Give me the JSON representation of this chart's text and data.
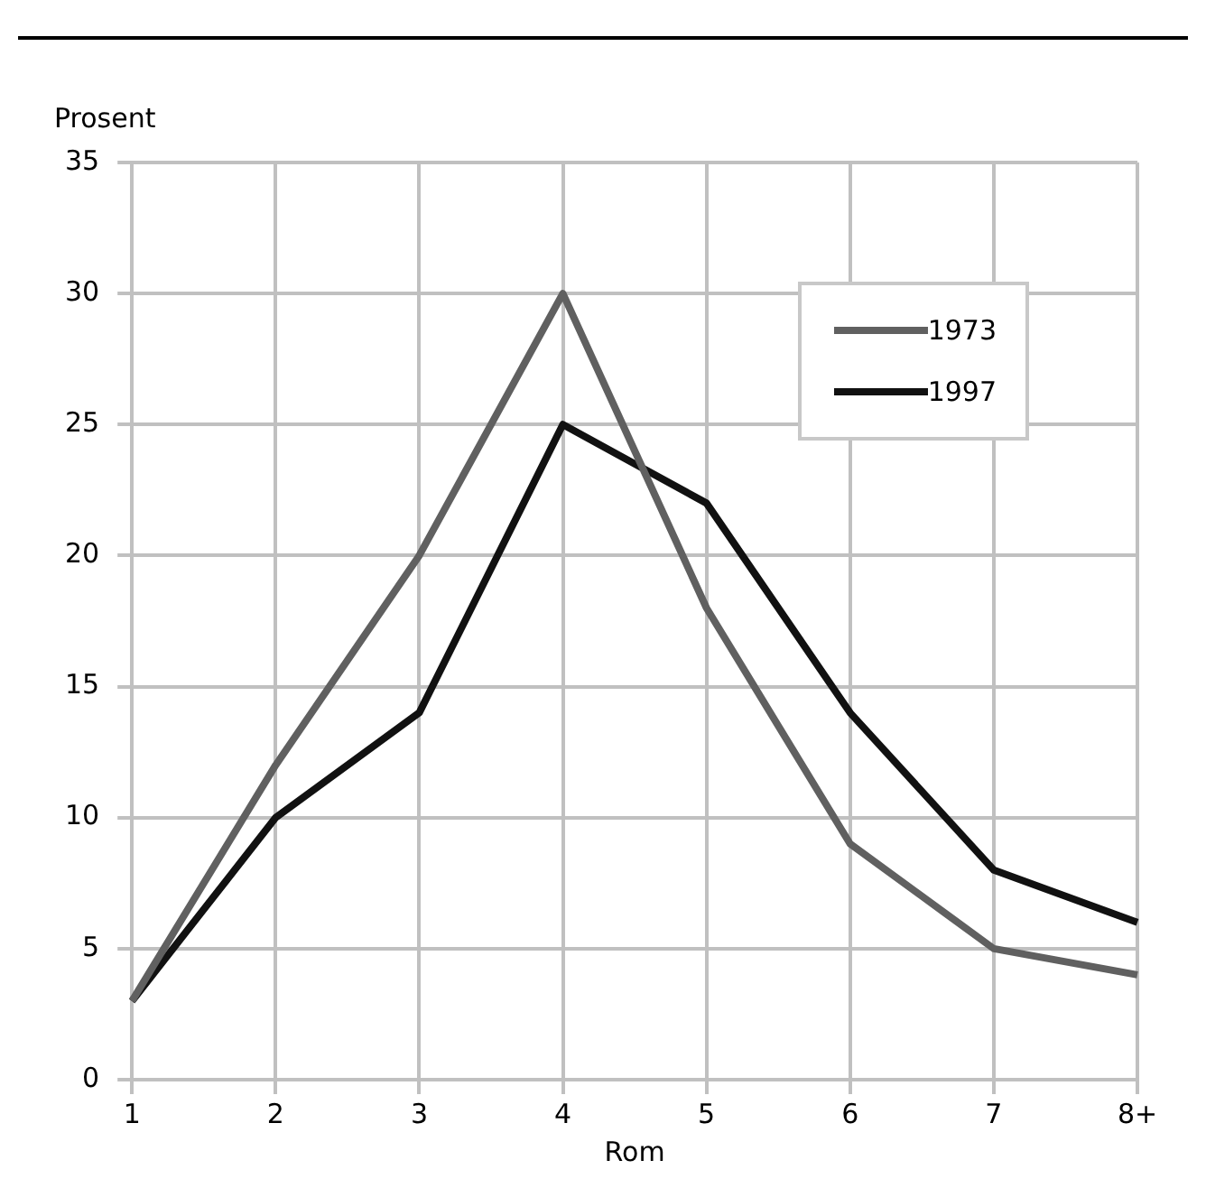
{
  "chart_data": {
    "type": "line",
    "ylabel": "Prosent",
    "xlabel": "Rom",
    "categories": [
      "1",
      "2",
      "3",
      "4",
      "5",
      "6",
      "7",
      "8+"
    ],
    "series": [
      {
        "name": "1973",
        "color": "#606060",
        "values": [
          3,
          12,
          20,
          30,
          18,
          9,
          5,
          4
        ]
      },
      {
        "name": "1997",
        "color": "#111111",
        "values": [
          3,
          10,
          14,
          25,
          22,
          14,
          8,
          6
        ]
      }
    ],
    "ylim": [
      0,
      35
    ],
    "yticks": [
      0,
      5,
      10,
      15,
      20,
      25,
      30,
      35
    ],
    "grid": true,
    "legend": "top right",
    "marker": "none",
    "line_style": "solid"
  }
}
